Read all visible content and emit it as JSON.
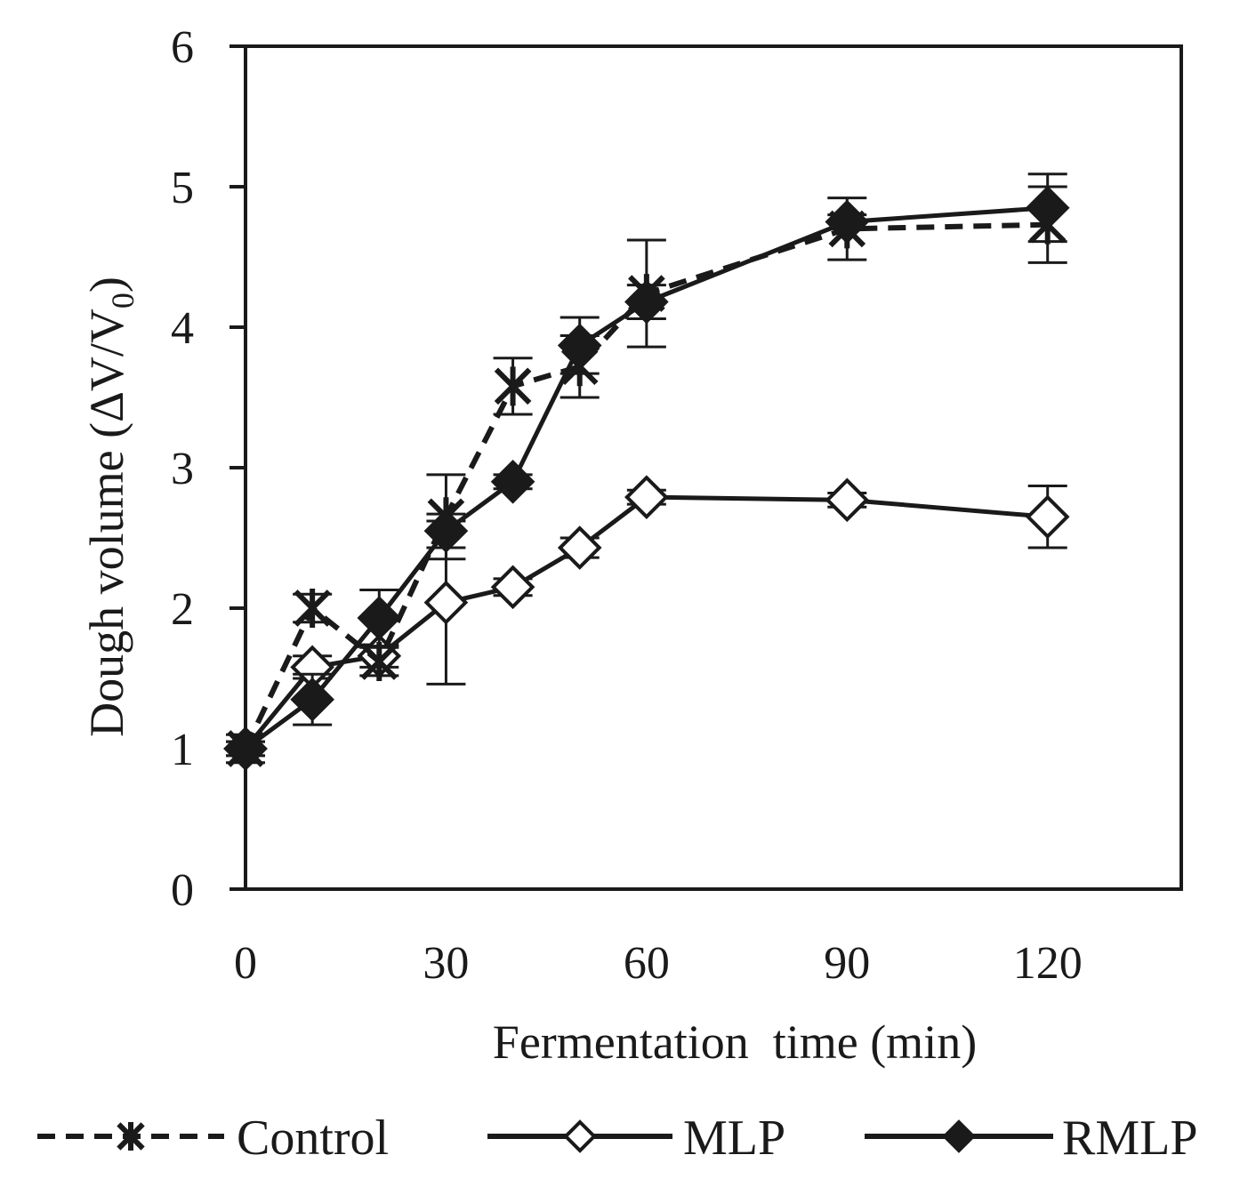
{
  "chart_data": {
    "type": "line",
    "title": "",
    "xlabel": "Fermentation  time (min)",
    "ylabel_main": "Dough volume (ΔV/V",
    "ylabel_sub": "0",
    "ylabel_close": ")",
    "xlim": [
      0,
      140
    ],
    "ylim": [
      0,
      6
    ],
    "xticks": [
      0,
      30,
      60,
      90,
      120
    ],
    "yticks": [
      0,
      1,
      2,
      3,
      4,
      5,
      6
    ],
    "grid": false,
    "legend_position": "bottom",
    "x": [
      0,
      10,
      20,
      30,
      40,
      50,
      60,
      90,
      120
    ],
    "series": [
      {
        "name": "Control",
        "style": "dashed",
        "marker": "asterisk",
        "values": [
          1.0,
          2.0,
          1.62,
          2.65,
          3.58,
          3.72,
          4.24,
          4.7,
          4.73
        ],
        "errors": [
          0.1,
          0.1,
          0.1,
          0.3,
          0.2,
          0.22,
          0.38,
          0.22,
          0.27
        ]
      },
      {
        "name": "MLP",
        "style": "solid",
        "marker": "open-diamond",
        "values": [
          1.0,
          1.58,
          1.66,
          2.04,
          2.15,
          2.43,
          2.79,
          2.77,
          2.65
        ],
        "errors": [
          0.05,
          0.08,
          0.08,
          0.58,
          0.06,
          0.07,
          0.05,
          0.05,
          0.22
        ]
      },
      {
        "name": "RMLP",
        "style": "solid",
        "marker": "filled-diamond",
        "values": [
          1.0,
          1.35,
          1.93,
          2.55,
          2.9,
          3.87,
          4.18,
          4.75,
          4.85
        ],
        "errors": [
          0.05,
          0.18,
          0.2,
          0.12,
          0.05,
          0.2,
          0.12,
          0.05,
          0.24
        ]
      }
    ]
  },
  "colors": {
    "ink": "#1a1a1a",
    "marker_fill_open": "#ffffff"
  }
}
